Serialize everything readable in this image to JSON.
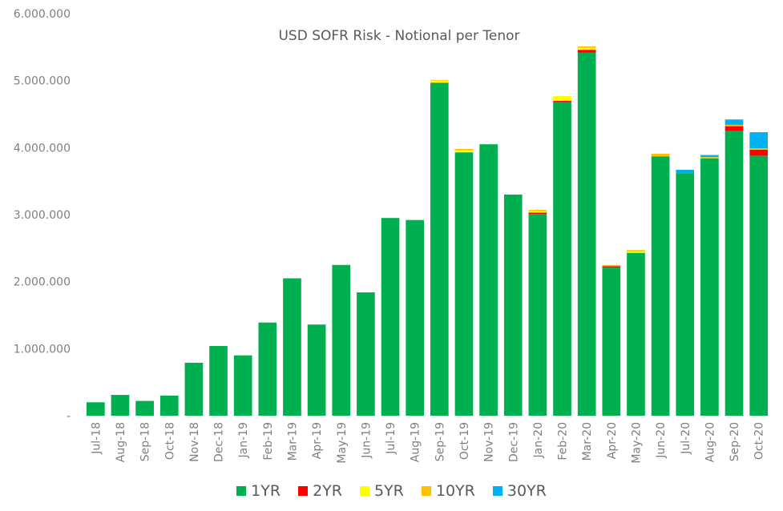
{
  "chart_data": {
    "type": "bar",
    "stacked": true,
    "title": "USD SOFR Risk - Notional per Tenor",
    "xlabel": "",
    "ylabel": "",
    "ylim": [
      0,
      6000000
    ],
    "yticks": [
      0,
      1000000,
      2000000,
      3000000,
      4000000,
      5000000,
      6000000
    ],
    "ytick_labels": [
      "-",
      "1.000.000",
      "2.000.000",
      "3.000.000",
      "4.000.000",
      "5.000.000",
      "6.000.000"
    ],
    "grid": false,
    "legend_position": "bottom",
    "categories": [
      "Jul-18",
      "Aug-18",
      "Sep-18",
      "Oct-18",
      "Nov-18",
      "Dec-18",
      "Jan-19",
      "Feb-19",
      "Mar-19",
      "Apr-19",
      "May-19",
      "Jun-19",
      "Jul-19",
      "Aug-19",
      "Sep-19",
      "Oct-19",
      "Nov-19",
      "Dec-19",
      "Jan-20",
      "Feb-20",
      "Mar-20",
      "Apr-20",
      "May-20",
      "Jun-20",
      "Jul-20",
      "Aug-20",
      "Sep-20",
      "Oct-20"
    ],
    "series": [
      {
        "name": "1YR",
        "color": "#00b050",
        "values": [
          200000,
          310000,
          220000,
          300000,
          790000,
          1040000,
          900000,
          1390000,
          2050000,
          1360000,
          2250000,
          1840000,
          2950000,
          2920000,
          4970000,
          3930000,
          4050000,
          3300000,
          3010000,
          4680000,
          5420000,
          2210000,
          2430000,
          3870000,
          3620000,
          3840000,
          4250000,
          3880000
        ]
      },
      {
        "name": "2YR",
        "color": "#ff0000",
        "values": [
          0,
          0,
          0,
          0,
          0,
          0,
          0,
          0,
          0,
          0,
          0,
          0,
          0,
          0,
          0,
          0,
          0,
          0,
          20000,
          20000,
          40000,
          20000,
          0,
          0,
          0,
          0,
          70000,
          90000
        ]
      },
      {
        "name": "5YR",
        "color": "#ffff00",
        "values": [
          0,
          0,
          0,
          0,
          0,
          0,
          0,
          0,
          0,
          0,
          0,
          0,
          0,
          0,
          30000,
          30000,
          0,
          0,
          20000,
          70000,
          30000,
          0,
          20000,
          0,
          0,
          0,
          0,
          0
        ]
      },
      {
        "name": "10YR",
        "color": "#ffc000",
        "values": [
          0,
          0,
          0,
          0,
          0,
          0,
          0,
          0,
          0,
          0,
          0,
          0,
          0,
          0,
          10000,
          20000,
          0,
          0,
          20000,
          0,
          20000,
          20000,
          20000,
          40000,
          0,
          20000,
          20000,
          20000
        ]
      },
      {
        "name": "30YR",
        "color": "#00b0f0",
        "values": [
          0,
          0,
          0,
          0,
          0,
          0,
          0,
          0,
          0,
          0,
          0,
          0,
          0,
          0,
          0,
          0,
          0,
          0,
          0,
          0,
          0,
          0,
          0,
          0,
          50000,
          30000,
          80000,
          240000
        ]
      }
    ]
  }
}
